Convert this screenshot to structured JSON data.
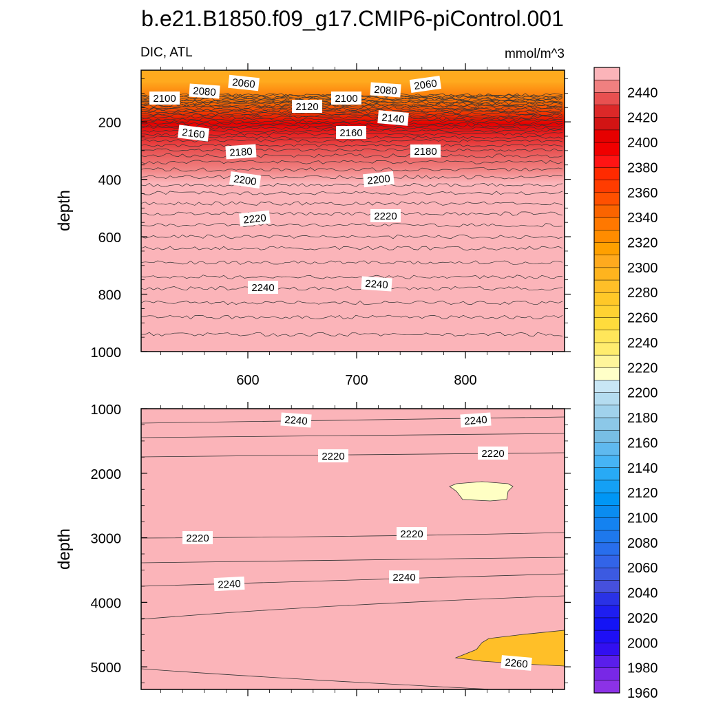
{
  "chart_data": {
    "type": "contour",
    "title": "b.e21.B1850.f09_g17.CMIP6-piControl.001",
    "left_string": "DIC, ATL",
    "right_string": "mmol/m^3",
    "ylabel": "depth",
    "xticks": [
      "600",
      "700",
      "800"
    ],
    "upper_panel": {
      "ylim": [
        1000,
        0
      ],
      "yticks": [
        "200",
        "400",
        "600",
        "800",
        "1000"
      ],
      "contour_labels": [
        "2060",
        "2080",
        "2100",
        "2120",
        "2100",
        "2080",
        "2060",
        "2140",
        "2160",
        "2160",
        "2180",
        "2180",
        "2200",
        "2200",
        "2220",
        "2220",
        "2240",
        "2240"
      ],
      "levels": [
        {
          "depth": 40,
          "value": 2050
        },
        {
          "depth": 120,
          "value": 2090
        },
        {
          "depth": 190,
          "value": 2150
        },
        {
          "depth": 280,
          "value": 2180
        },
        {
          "depth": 350,
          "value": 2190
        },
        {
          "depth": 400,
          "value": 2205
        },
        {
          "depth": 520,
          "value": 2220
        },
        {
          "depth": 780,
          "value": 2240
        },
        {
          "depth": 1000,
          "value": 2245
        }
      ]
    },
    "lower_panel": {
      "ylim": [
        5350,
        1000
      ],
      "yticks": [
        "1000",
        "2000",
        "3000",
        "4000",
        "5000"
      ],
      "contour_labels": [
        "2240",
        "2240",
        "2220",
        "2220",
        "2220",
        "2220",
        "2240",
        "2240",
        "2260"
      ],
      "levels": [
        {
          "depth": 1000,
          "value": 2240
        },
        {
          "depth": 1250,
          "value": 2235
        },
        {
          "depth": 1500,
          "value": 2225
        },
        {
          "depth": 2000,
          "value": 2210
        },
        {
          "depth": 3000,
          "value": 2220
        },
        {
          "depth": 3500,
          "value": 2235
        },
        {
          "depth": 4000,
          "value": 2245
        },
        {
          "depth": 5000,
          "value": 2250
        }
      ]
    },
    "colorbar": {
      "labels": [
        "2440",
        "2420",
        "2400",
        "2380",
        "2360",
        "2340",
        "2320",
        "2300",
        "2280",
        "2260",
        "2240",
        "2220",
        "2200",
        "2180",
        "2160",
        "2140",
        "2120",
        "2100",
        "2080",
        "2060",
        "2040",
        "2020",
        "2000",
        "1980",
        "1960"
      ],
      "colors": [
        "#fbb4b9",
        "#f08080",
        "#e85050",
        "#dc2828",
        "#d21414",
        "#e60000",
        "#f00000",
        "#ff1414",
        "#ff2a00",
        "#ff3c00",
        "#ff5000",
        "#fa6400",
        "#ff7800",
        "#ff8c00",
        "#ffa000",
        "#ffaa1e",
        "#ffb41e",
        "#ffbf28",
        "#ffc828",
        "#ffd232",
        "#ffdc3c",
        "#ffe65a",
        "#ffec6e",
        "#fff59b",
        "#ffffc8",
        "#c8e6f5",
        "#b4dcf0",
        "#a0d2ec",
        "#8cc8e8",
        "#78bee4",
        "#5fb9ef",
        "#46b4f5",
        "#28aaf5",
        "#14a0f5",
        "#0096f5",
        "#0a8cf0",
        "#1482f0",
        "#1e78ec",
        "#286eec",
        "#3264e8",
        "#3c5ae1",
        "#4650dc",
        "#2a32e6",
        "#1e1ef0",
        "#1414f5",
        "#1e0ff5",
        "#320ff0",
        "#5a1eeb",
        "#7828e6",
        "#8c32e6"
      ]
    }
  }
}
